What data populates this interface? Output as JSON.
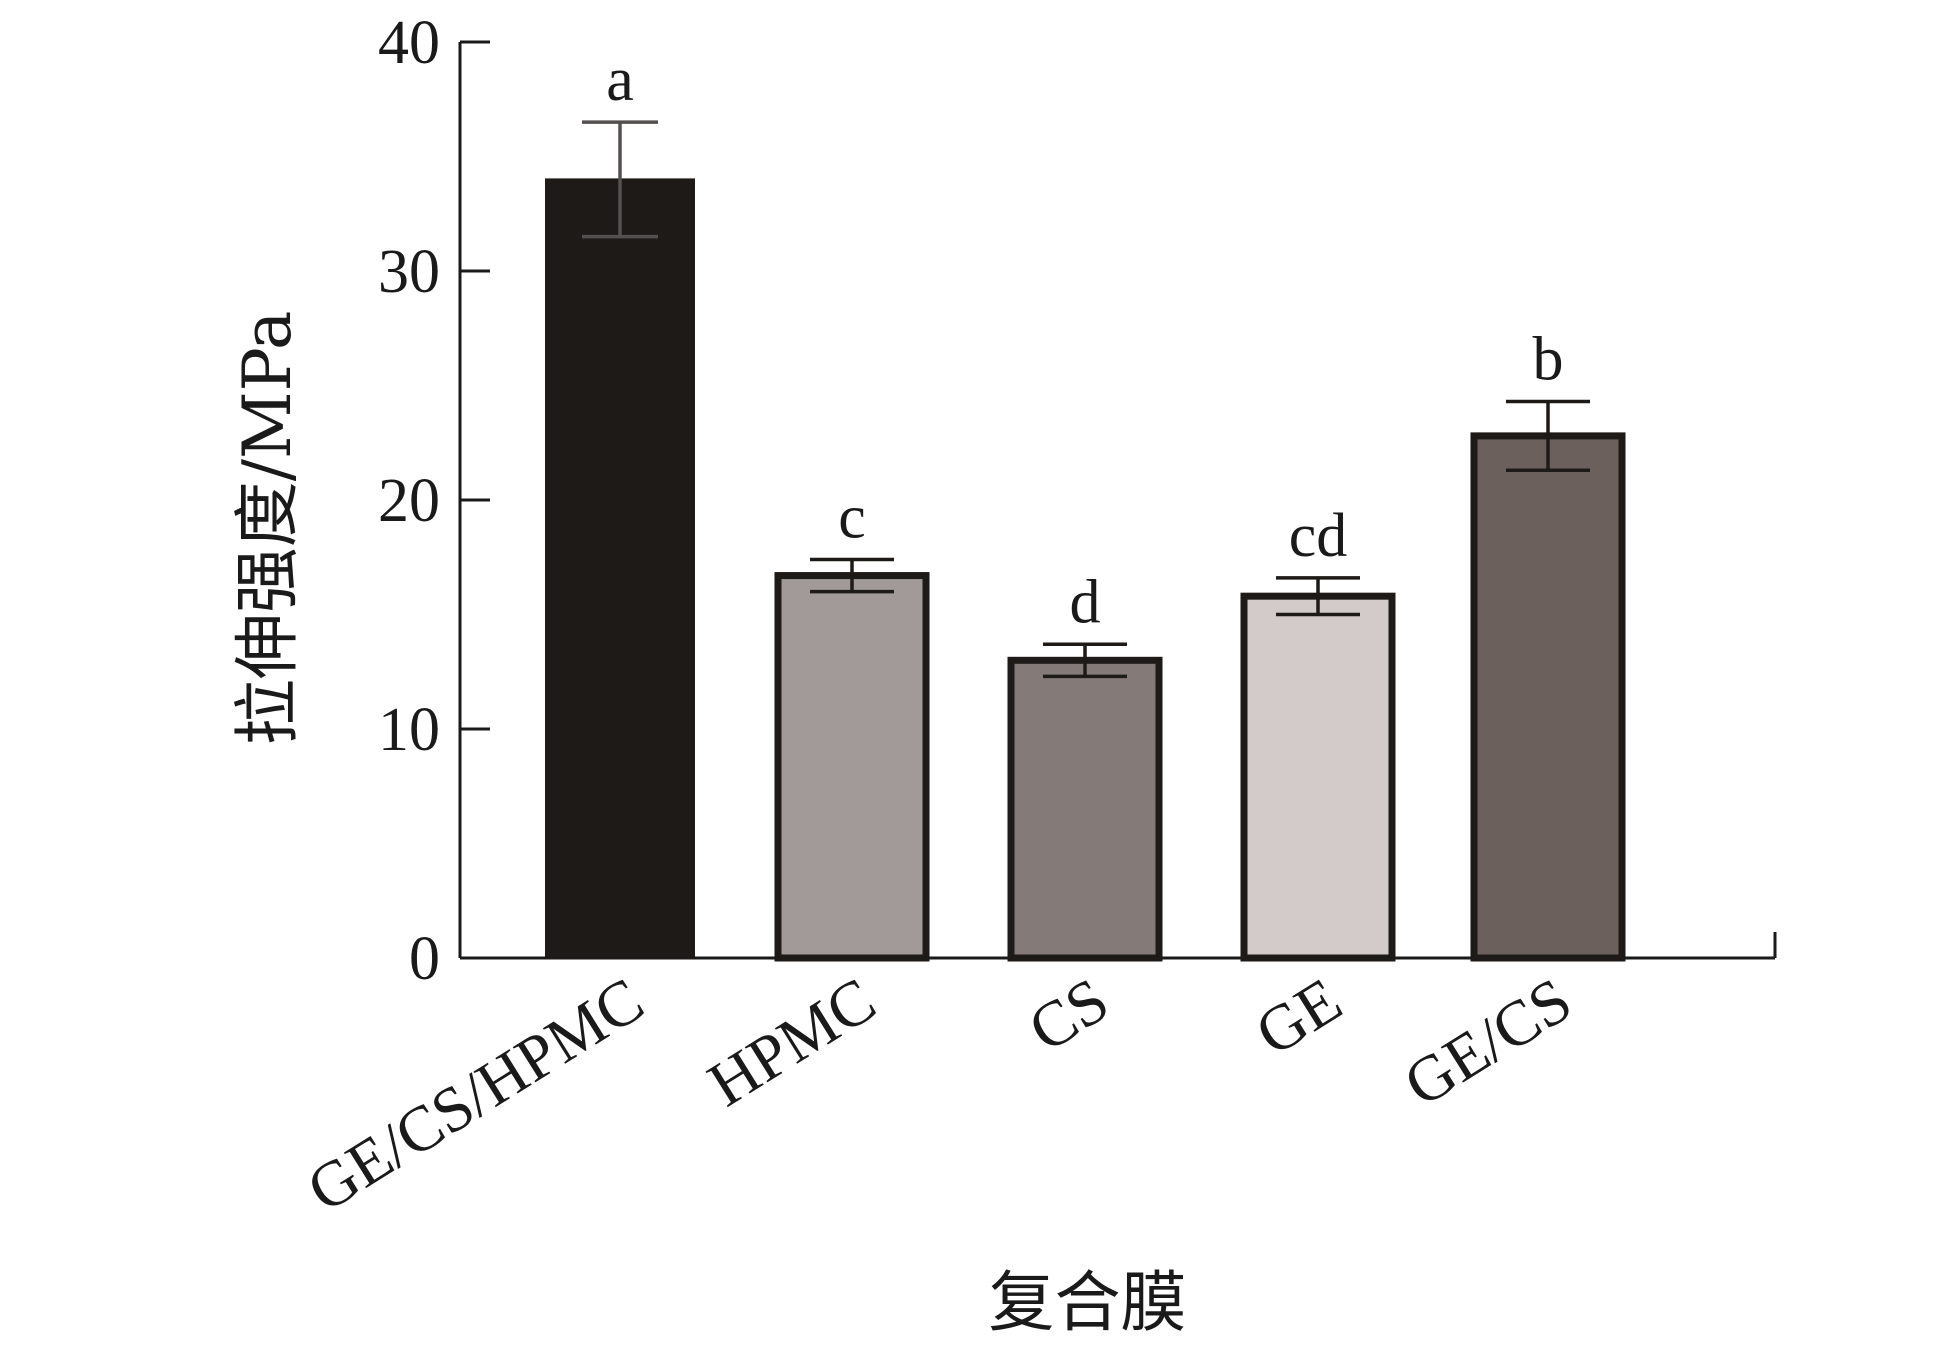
{
  "chart_data": {
    "type": "bar",
    "title": "",
    "xlabel": "复合膜",
    "ylabel": "拉伸强度/MPa",
    "ylim": [
      0,
      40
    ],
    "yticks": [
      0,
      10,
      20,
      30,
      40
    ],
    "categories": [
      "GE/CS/HPMC",
      "HPMC",
      "CS",
      "GE",
      "GE/CS"
    ],
    "values": [
      34.0,
      16.7,
      13.0,
      15.8,
      22.8
    ],
    "error": [
      2.5,
      0.7,
      0.7,
      0.8,
      1.5
    ],
    "significance": [
      "a",
      "c",
      "d",
      "cd",
      "b"
    ],
    "colors": [
      "#1e1a17",
      "#a29a98",
      "#847b78",
      "#d3cbc9",
      "#6b605b"
    ],
    "grid": false
  }
}
